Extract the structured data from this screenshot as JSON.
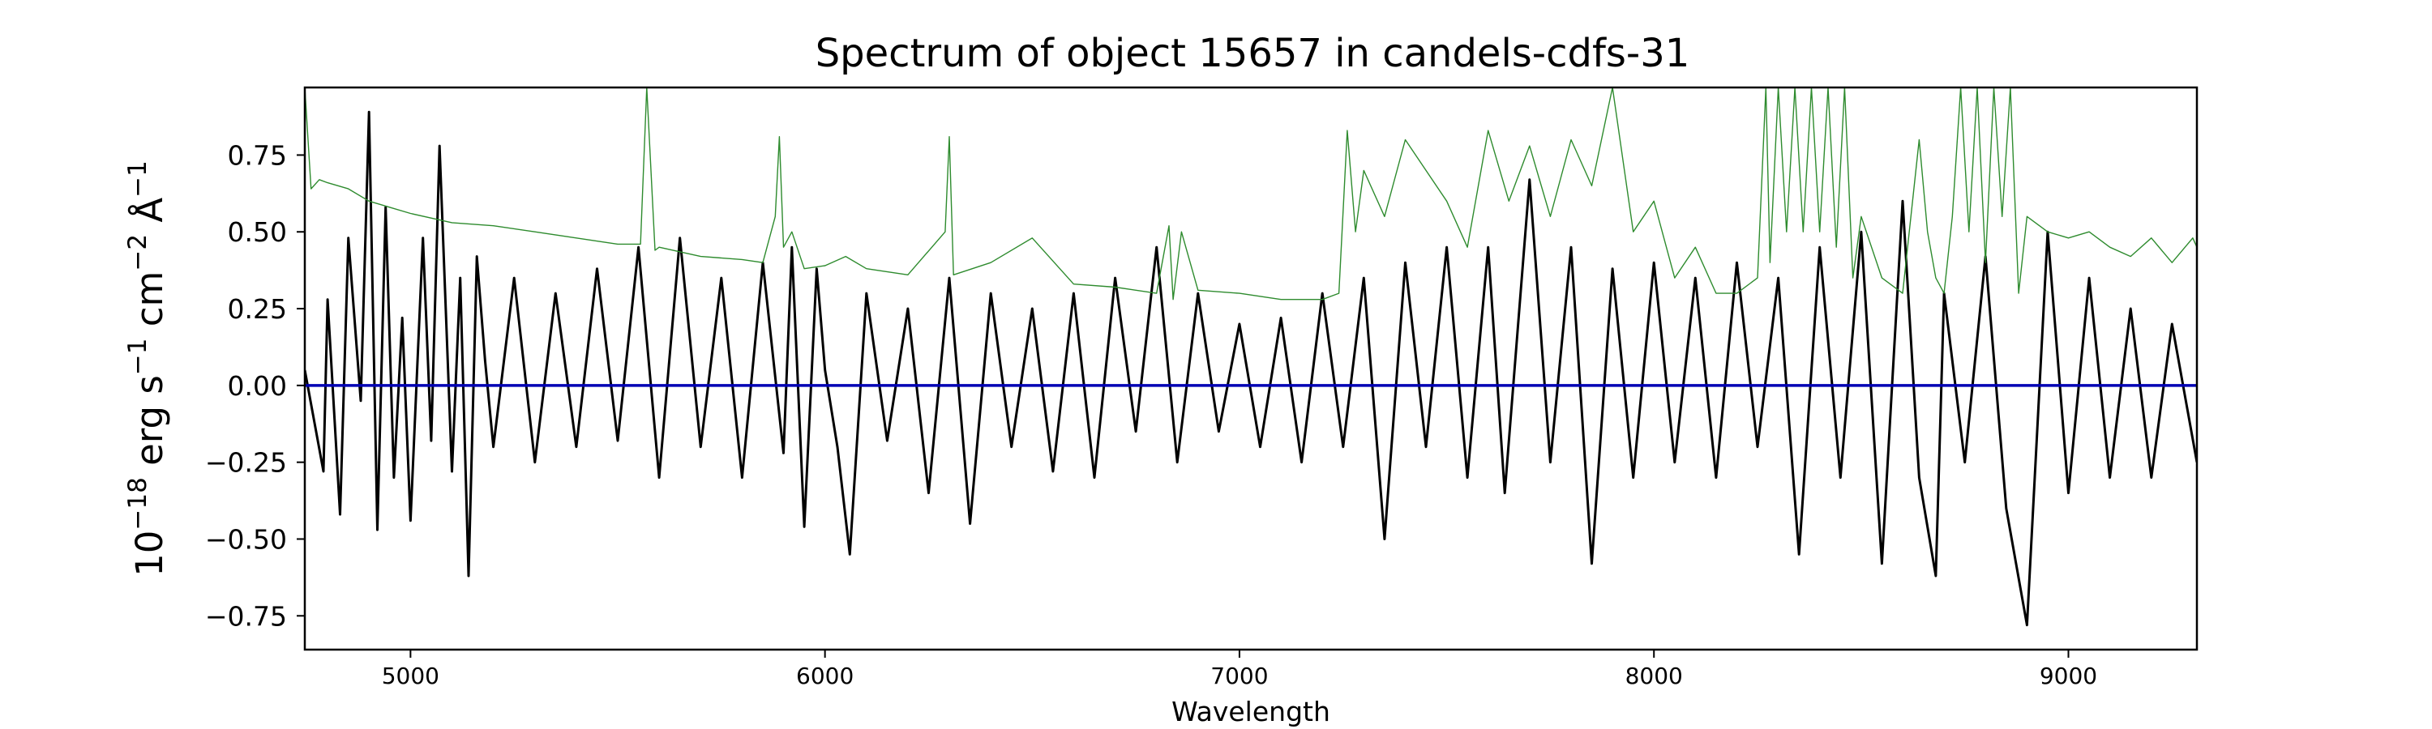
{
  "chart_data": {
    "type": "line",
    "title": "Spectrum of object 15657 in candels-cdfs-31",
    "xlabel": "Wavelength",
    "ylabel": {
      "base": "10",
      "exp": "−18",
      "unit1": " erg s",
      "exp1": "−1",
      "unit2": " cm",
      "exp2": "−2",
      "unit3": " Å",
      "exp3": "−1"
    },
    "xlim": [
      4745,
      9310
    ],
    "ylim": [
      -0.86,
      0.97
    ],
    "x_ticks": [
      5000,
      6000,
      7000,
      8000,
      9000
    ],
    "y_ticks": [
      -0.75,
      -0.5,
      -0.25,
      0.0,
      0.25,
      0.5,
      0.75
    ],
    "y_tick_labels": [
      "−0.75",
      "−0.50",
      "−0.25",
      "0.00",
      "0.25",
      "0.50",
      "0.75"
    ],
    "x_tick_labels": [
      "5000",
      "6000",
      "7000",
      "8000",
      "9000"
    ],
    "grid": false,
    "series": [
      {
        "color": "#000000",
        "style": "noisy flux",
        "x": [
          4745,
          4790,
          4800,
          4830,
          4850,
          4880,
          4900,
          4920,
          4940,
          4960,
          4980,
          5000,
          5030,
          5050,
          5070,
          5100,
          5120,
          5140,
          5160,
          5180,
          5200,
          5250,
          5300,
          5350,
          5400,
          5450,
          5500,
          5550,
          5600,
          5650,
          5700,
          5750,
          5800,
          5850,
          5900,
          5920,
          5950,
          5980,
          6000,
          6030,
          6060,
          6100,
          6150,
          6200,
          6250,
          6300,
          6350,
          6400,
          6450,
          6500,
          6550,
          6600,
          6650,
          6700,
          6750,
          6800,
          6850,
          6900,
          6950,
          7000,
          7050,
          7100,
          7150,
          7200,
          7250,
          7300,
          7350,
          7400,
          7450,
          7500,
          7550,
          7600,
          7640,
          7700,
          7750,
          7800,
          7850,
          7900,
          7950,
          8000,
          8050,
          8100,
          8150,
          8200,
          8250,
          8300,
          8350,
          8400,
          8450,
          8500,
          8550,
          8600,
          8640,
          8680,
          8700,
          8750,
          8800,
          8850,
          8900,
          8950,
          9000,
          9050,
          9100,
          9150,
          9200,
          9250,
          9310
        ],
        "y": [
          0.05,
          -0.28,
          0.28,
          -0.42,
          0.48,
          -0.05,
          0.89,
          -0.47,
          0.58,
          -0.3,
          0.22,
          -0.44,
          0.48,
          -0.18,
          0.78,
          -0.28,
          0.35,
          -0.62,
          0.42,
          0.08,
          -0.2,
          0.35,
          -0.25,
          0.3,
          -0.2,
          0.38,
          -0.18,
          0.45,
          -0.3,
          0.48,
          -0.2,
          0.35,
          -0.3,
          0.4,
          -0.22,
          0.45,
          -0.46,
          0.38,
          0.05,
          -0.2,
          -0.55,
          0.3,
          -0.18,
          0.25,
          -0.35,
          0.35,
          -0.45,
          0.3,
          -0.2,
          0.25,
          -0.28,
          0.3,
          -0.3,
          0.35,
          -0.15,
          0.45,
          -0.25,
          0.3,
          -0.15,
          0.2,
          -0.2,
          0.22,
          -0.25,
          0.3,
          -0.2,
          0.35,
          -0.5,
          0.4,
          -0.2,
          0.45,
          -0.3,
          0.45,
          -0.35,
          0.67,
          -0.25,
          0.45,
          -0.58,
          0.38,
          -0.3,
          0.4,
          -0.25,
          0.35,
          -0.3,
          0.4,
          -0.2,
          0.35,
          -0.55,
          0.45,
          -0.3,
          0.5,
          -0.58,
          0.6,
          -0.3,
          -0.62,
          0.3,
          -0.25,
          0.42,
          -0.4,
          -0.78,
          0.5,
          -0.35,
          0.35,
          -0.3,
          0.25,
          -0.3,
          0.2,
          -0.25
        ]
      },
      {
        "color": "#2e8b2e",
        "style": "error / sky spectrum",
        "x": [
          4745,
          4760,
          4780,
          4800,
          4850,
          4900,
          4950,
          5000,
          5100,
          5200,
          5300,
          5400,
          5500,
          5555,
          5570,
          5590,
          5600,
          5700,
          5800,
          5850,
          5880,
          5890,
          5900,
          5920,
          5950,
          6000,
          6050,
          6100,
          6200,
          6290,
          6300,
          6310,
          6400,
          6500,
          6600,
          6700,
          6800,
          6830,
          6840,
          6860,
          6900,
          7000,
          7100,
          7200,
          7240,
          7260,
          7280,
          7300,
          7350,
          7400,
          7500,
          7550,
          7600,
          7650,
          7700,
          7750,
          7800,
          7850,
          7900,
          7950,
          8000,
          8050,
          8100,
          8150,
          8200,
          8250,
          8270,
          8280,
          8300,
          8320,
          8340,
          8360,
          8380,
          8400,
          8420,
          8440,
          8460,
          8480,
          8500,
          8550,
          8600,
          8620,
          8640,
          8660,
          8680,
          8700,
          8720,
          8740,
          8760,
          8780,
          8800,
          8820,
          8840,
          8860,
          8880,
          8900,
          8950,
          9000,
          9050,
          9100,
          9150,
          9200,
          9250,
          9300,
          9310
        ],
        "y": [
          0.97,
          0.64,
          0.67,
          0.66,
          0.64,
          0.6,
          0.58,
          0.56,
          0.53,
          0.52,
          0.5,
          0.48,
          0.46,
          0.46,
          0.97,
          0.44,
          0.45,
          0.42,
          0.41,
          0.4,
          0.55,
          0.81,
          0.45,
          0.5,
          0.38,
          0.39,
          0.42,
          0.38,
          0.36,
          0.5,
          0.81,
          0.36,
          0.4,
          0.48,
          0.33,
          0.32,
          0.3,
          0.52,
          0.28,
          0.5,
          0.31,
          0.3,
          0.28,
          0.28,
          0.3,
          0.83,
          0.5,
          0.7,
          0.55,
          0.8,
          0.6,
          0.45,
          0.83,
          0.6,
          0.78,
          0.55,
          0.8,
          0.65,
          0.97,
          0.5,
          0.6,
          0.35,
          0.45,
          0.3,
          0.3,
          0.35,
          0.97,
          0.4,
          0.97,
          0.5,
          0.97,
          0.5,
          0.97,
          0.5,
          0.97,
          0.45,
          0.97,
          0.35,
          0.55,
          0.35,
          0.3,
          0.55,
          0.8,
          0.5,
          0.35,
          0.3,
          0.55,
          0.97,
          0.5,
          0.97,
          0.4,
          0.97,
          0.55,
          0.97,
          0.3,
          0.55,
          0.5,
          0.48,
          0.5,
          0.45,
          0.42,
          0.48,
          0.4,
          0.48,
          0.45
        ]
      },
      {
        "color": "#0000b4",
        "style": "zero / model line",
        "x": [
          4745,
          9310
        ],
        "y": [
          0.0,
          0.0
        ]
      }
    ]
  }
}
